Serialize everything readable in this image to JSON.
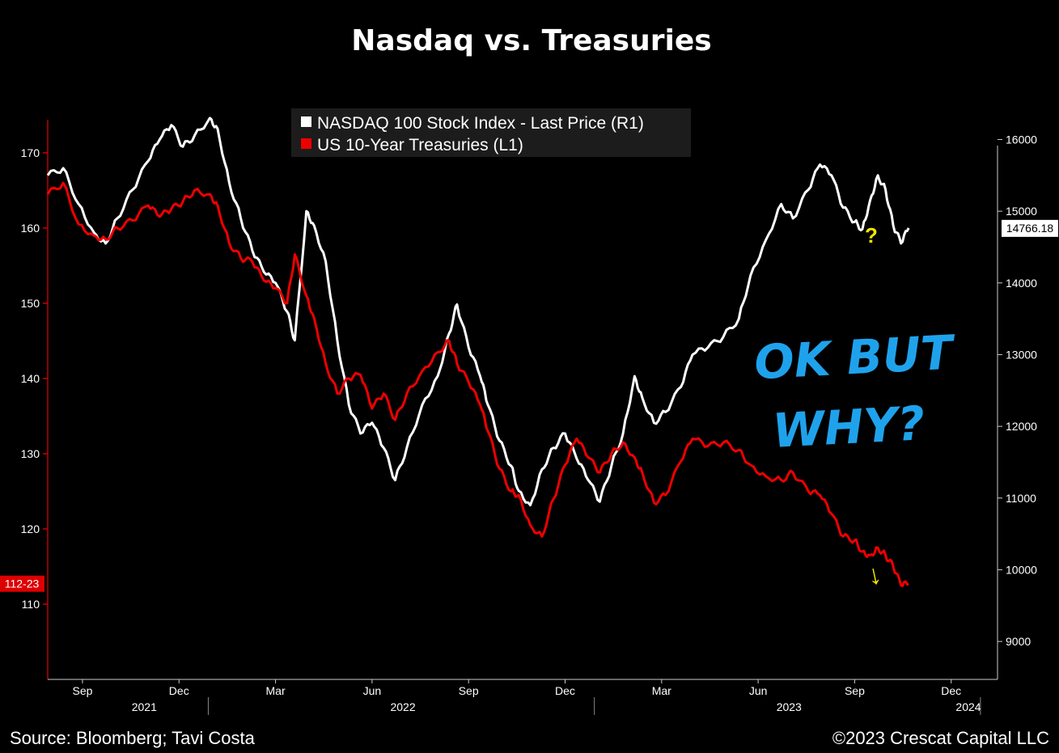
{
  "chart_data": {
    "type": "line",
    "title": "Nasdaq vs. Treasuries",
    "legend": [
      {
        "name": "NASDAQ 100 Stock Index - Last Price (R1)",
        "color": "#ffffff"
      },
      {
        "name": "US 10-Year Treasuries (L1)",
        "color": "#ee0000"
      }
    ],
    "legend_position": "top-center",
    "x_month_ticks": [
      "Sep",
      "Dec",
      "Mar",
      "Jun",
      "Sep",
      "Dec",
      "Mar",
      "Jun",
      "Sep",
      "Dec"
    ],
    "x_year_labels": [
      "2021",
      "2022",
      "2023",
      "2024"
    ],
    "left_axis": {
      "ticks": [
        "110",
        "120",
        "130",
        "140",
        "150",
        "160",
        "170"
      ],
      "range": [
        100,
        174.4
      ],
      "last_value_label": "112-23",
      "last_value": 112.72
    },
    "right_axis": {
      "ticks": [
        "9000",
        "10000",
        "11000",
        "12000",
        "13000",
        "14000",
        "15000",
        "16000"
      ],
      "range": [
        8471,
        16276
      ],
      "last_value_label": "14766.18",
      "last_value": 14766.18
    },
    "series": [
      {
        "name": "NASDAQ 100 Stock Index - Last Price (R1)",
        "axis": "right",
        "color": "#ffffff",
        "points": [
          [
            2021.58,
            15500
          ],
          [
            2021.62,
            15600
          ],
          [
            2021.66,
            15100
          ],
          [
            2021.7,
            14700
          ],
          [
            2021.73,
            14550
          ],
          [
            2021.76,
            14900
          ],
          [
            2021.8,
            15300
          ],
          [
            2021.84,
            15700
          ],
          [
            2021.87,
            16000
          ],
          [
            2021.9,
            16200
          ],
          [
            2021.93,
            15900
          ],
          [
            2021.96,
            16050
          ],
          [
            2022.0,
            16300
          ],
          [
            2022.02,
            16150
          ],
          [
            2022.05,
            15400
          ],
          [
            2022.08,
            14900
          ],
          [
            2022.11,
            14450
          ],
          [
            2022.14,
            14150
          ],
          [
            2022.17,
            14000
          ],
          [
            2022.2,
            13600
          ],
          [
            2022.22,
            13200
          ],
          [
            2022.25,
            15000
          ],
          [
            2022.27,
            14800
          ],
          [
            2022.3,
            14300
          ],
          [
            2022.33,
            13200
          ],
          [
            2022.36,
            12300
          ],
          [
            2022.39,
            11900
          ],
          [
            2022.42,
            12050
          ],
          [
            2022.45,
            11700
          ],
          [
            2022.48,
            11250
          ],
          [
            2022.51,
            11700
          ],
          [
            2022.55,
            12300
          ],
          [
            2022.59,
            12700
          ],
          [
            2022.62,
            13300
          ],
          [
            2022.64,
            13700
          ],
          [
            2022.67,
            13100
          ],
          [
            2022.7,
            12700
          ],
          [
            2022.72,
            12300
          ],
          [
            2022.75,
            11800
          ],
          [
            2022.78,
            11450
          ],
          [
            2022.8,
            11100
          ],
          [
            2022.83,
            10900
          ],
          [
            2022.86,
            11400
          ],
          [
            2022.89,
            11700
          ],
          [
            2022.92,
            11900
          ],
          [
            2022.95,
            11550
          ],
          [
            2022.98,
            11250
          ],
          [
            2023.01,
            10950
          ],
          [
            2023.04,
            11450
          ],
          [
            2023.07,
            11900
          ],
          [
            2023.1,
            12700
          ],
          [
            2023.12,
            12400
          ],
          [
            2023.15,
            12050
          ],
          [
            2023.18,
            12200
          ],
          [
            2023.22,
            12550
          ],
          [
            2023.25,
            13000
          ],
          [
            2023.29,
            13100
          ],
          [
            2023.33,
            13250
          ],
          [
            2023.37,
            13500
          ],
          [
            2023.4,
            14100
          ],
          [
            2023.44,
            14600
          ],
          [
            2023.48,
            15100
          ],
          [
            2023.51,
            14900
          ],
          [
            2023.55,
            15300
          ],
          [
            2023.58,
            15650
          ],
          [
            2023.61,
            15500
          ],
          [
            2023.64,
            15050
          ],
          [
            2023.67,
            14850
          ],
          [
            2023.69,
            14750
          ],
          [
            2023.71,
            15150
          ],
          [
            2023.73,
            15500
          ],
          [
            2023.75,
            15300
          ],
          [
            2023.77,
            14800
          ],
          [
            2023.79,
            14550
          ],
          [
            2023.81,
            14766
          ]
        ]
      },
      {
        "name": "US 10-Year Treasuries (L1)",
        "axis": "left",
        "color": "#ee0000",
        "points": [
          [
            2021.58,
            164.5
          ],
          [
            2021.62,
            166.0
          ],
          [
            2021.66,
            160.5
          ],
          [
            2021.7,
            159.0
          ],
          [
            2021.73,
            158.5
          ],
          [
            2021.76,
            160.0
          ],
          [
            2021.8,
            161.0
          ],
          [
            2021.84,
            163.0
          ],
          [
            2021.87,
            161.5
          ],
          [
            2021.9,
            162.5
          ],
          [
            2021.93,
            163.5
          ],
          [
            2021.96,
            165.0
          ],
          [
            2022.0,
            164.5
          ],
          [
            2022.02,
            163.0
          ],
          [
            2022.05,
            158.0
          ],
          [
            2022.08,
            156.0
          ],
          [
            2022.11,
            155.5
          ],
          [
            2022.14,
            153.0
          ],
          [
            2022.17,
            152.0
          ],
          [
            2022.2,
            150.0
          ],
          [
            2022.22,
            156.5
          ],
          [
            2022.25,
            151.0
          ],
          [
            2022.27,
            148.0
          ],
          [
            2022.3,
            142.0
          ],
          [
            2022.33,
            138.0
          ],
          [
            2022.36,
            140.0
          ],
          [
            2022.39,
            140.5
          ],
          [
            2022.42,
            136.0
          ],
          [
            2022.45,
            138.0
          ],
          [
            2022.48,
            134.5
          ],
          [
            2022.51,
            138.0
          ],
          [
            2022.55,
            141.0
          ],
          [
            2022.59,
            143.5
          ],
          [
            2022.62,
            145.0
          ],
          [
            2022.64,
            142.0
          ],
          [
            2022.67,
            139.5
          ],
          [
            2022.7,
            136.5
          ],
          [
            2022.72,
            133.0
          ],
          [
            2022.75,
            128.0
          ],
          [
            2022.78,
            125.0
          ],
          [
            2022.8,
            124.5
          ],
          [
            2022.83,
            120.5
          ],
          [
            2022.86,
            119.0
          ],
          [
            2022.89,
            124.0
          ],
          [
            2022.92,
            128.5
          ],
          [
            2022.95,
            132.0
          ],
          [
            2022.98,
            129.5
          ],
          [
            2023.01,
            127.5
          ],
          [
            2023.04,
            130.0
          ],
          [
            2023.07,
            131.5
          ],
          [
            2023.1,
            129.5
          ],
          [
            2023.12,
            127.5
          ],
          [
            2023.15,
            123.5
          ],
          [
            2023.18,
            124.5
          ],
          [
            2023.22,
            129.0
          ],
          [
            2023.25,
            132.0
          ],
          [
            2023.29,
            131.0
          ],
          [
            2023.33,
            131.5
          ],
          [
            2023.37,
            130.5
          ],
          [
            2023.4,
            128.5
          ],
          [
            2023.44,
            127.0
          ],
          [
            2023.48,
            126.5
          ],
          [
            2023.51,
            127.5
          ],
          [
            2023.55,
            125.0
          ],
          [
            2023.58,
            124.5
          ],
          [
            2023.61,
            122.0
          ],
          [
            2023.64,
            119.0
          ],
          [
            2023.67,
            118.5
          ],
          [
            2023.69,
            117.0
          ],
          [
            2023.71,
            116.5
          ],
          [
            2023.73,
            117.5
          ],
          [
            2023.75,
            116.5
          ],
          [
            2023.77,
            115.0
          ],
          [
            2023.79,
            112.5
          ],
          [
            2023.81,
            112.72
          ]
        ]
      }
    ],
    "annotations": [
      {
        "text": "OK BUT",
        "color": "#1fa2ec"
      },
      {
        "text": "WHY?",
        "color": "#1fa2ec"
      },
      {
        "text": "?",
        "color": "#f2e500"
      },
      {
        "text": "↓",
        "color": "#f2e500"
      }
    ]
  },
  "footer": {
    "source": "Source: Bloomberg; Tavi Costa",
    "copyright": "©2023 Crescat Capital LLC"
  }
}
